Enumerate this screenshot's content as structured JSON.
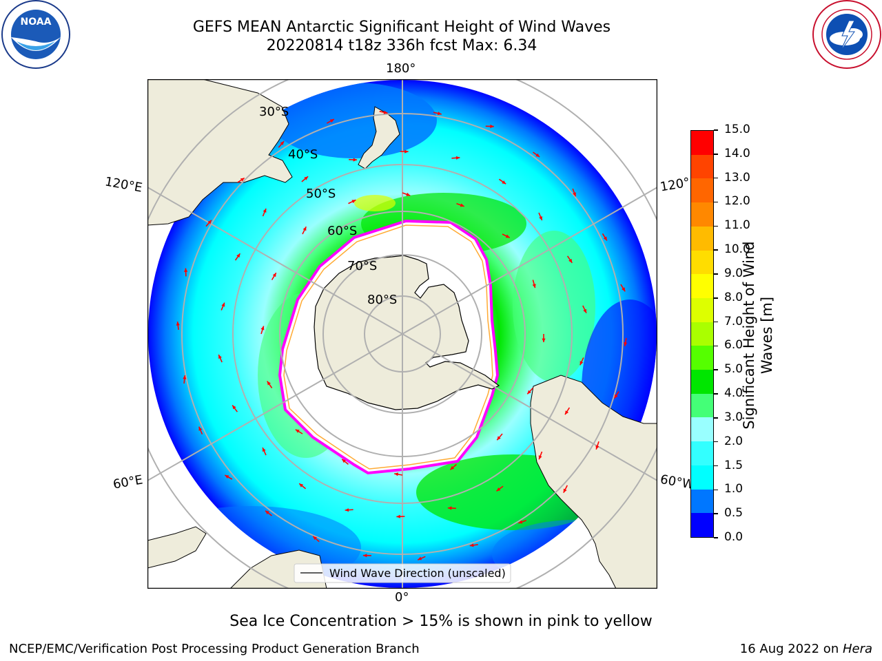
{
  "header": {
    "title_line1": "GEFS MEAN Antarctic Significant Height of Wind Waves",
    "title_line2": "20220814 t18z 336h fcst   Max: 6.34"
  },
  "logos": {
    "left": {
      "name": "NOAA",
      "ring_text": "NATIONAL OCEANIC AND ATMOSPHERIC ADMINISTRATION",
      "bottom_text": "U.S. DEPARTMENT OF COMMERCE"
    },
    "right": {
      "ring_text": "NATIONAL WEATHER SERVICE"
    }
  },
  "map": {
    "longitude_labels": {
      "top": "180°",
      "bottom": "0°",
      "upper_left": "120°E",
      "upper_right": "120°",
      "lower_left": "60°E",
      "lower_right": "60°W"
    },
    "latitude_labels": [
      "30°S",
      "40°S",
      "50°S",
      "60°S",
      "70°S",
      "80°S"
    ],
    "legend": "Wind Wave Direction (unscaled)",
    "colors": {
      "land": "#eeecdb",
      "ice_edge": "#ff00ff",
      "arrow": "#ff0000",
      "graticule": "#b0b0b0"
    }
  },
  "colorbar": {
    "label": "Significant Height of Wind Waves [m]",
    "label_line1": "Significant Height of Wind",
    "label_line2": "Waves [m]",
    "ticks": [
      "15.0",
      "14.0",
      "13.0",
      "12.0",
      "11.0",
      "10.0",
      "9.0",
      "8.0",
      "7.0",
      "6.0",
      "5.0",
      "4.0",
      "3.0",
      "2.0",
      "1.5",
      "1.0",
      "0.5",
      "0.0"
    ],
    "colors": [
      "#0000ff",
      "#0077ff",
      "#00ffff",
      "#33ffff",
      "#99ffff",
      "#44ff77",
      "#00e600",
      "#55ff00",
      "#aaff00",
      "#ddff00",
      "#ffff00",
      "#ffdd00",
      "#ffbb00",
      "#ff8800",
      "#ff6600",
      "#ff4400",
      "#ff0000"
    ]
  },
  "notes": {
    "sea_ice": "Sea Ice Concentration > 15% is shown in pink to yellow"
  },
  "footer": {
    "left": "NCEP/EMC/Verification Post Processing Product Generation Branch",
    "right_date": "16 Aug 2022 on ",
    "right_machine": "Hera"
  }
}
